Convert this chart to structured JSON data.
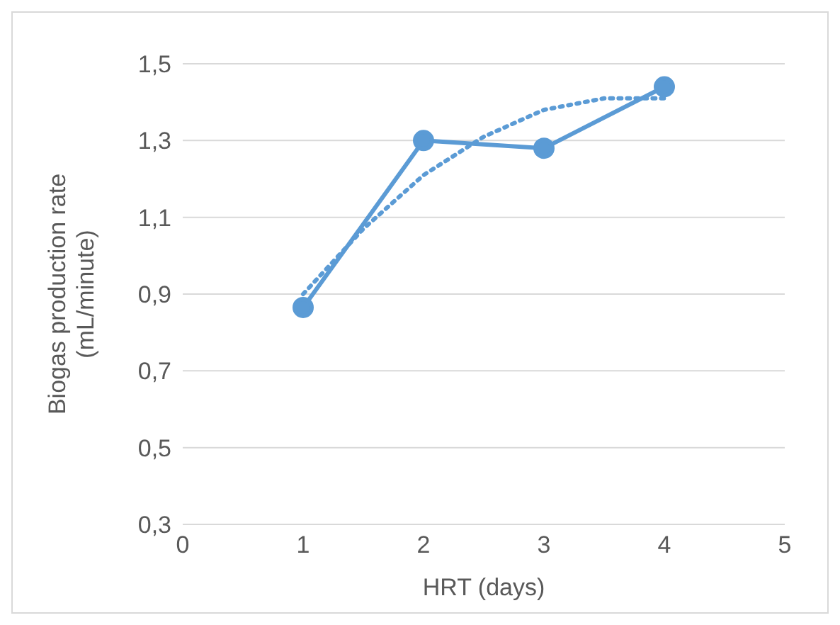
{
  "chart_data": {
    "type": "line",
    "xlabel": "HRT (days)",
    "ylabel": "Biogas production rate (mL/minute)",
    "x": [
      1,
      2,
      3,
      4
    ],
    "series": [
      {
        "color": "#5b9bd5",
        "values": [
          0.865,
          1.3,
          1.28,
          1.44
        ],
        "marker": "circle",
        "line_style": "solid"
      },
      {
        "type": "line",
        "color": "#5b9bd5",
        "x": [
          1,
          1.5,
          2,
          2.5,
          3,
          3.5,
          4
        ],
        "values": [
          0.9,
          1.07,
          1.21,
          1.31,
          1.38,
          1.41,
          1.41
        ],
        "marker": "none",
        "line_style": "dotted"
      }
    ],
    "xlim": [
      0,
      5
    ],
    "xticks": [
      0,
      1,
      2,
      3,
      4,
      5
    ],
    "ylim": [
      0.3,
      1.5
    ],
    "yticks": [
      {
        "value": 0.3,
        "label": "0,3"
      },
      {
        "value": 0.5,
        "label": "0,5"
      },
      {
        "value": 0.7,
        "label": "0,7"
      },
      {
        "value": 0.9,
        "label": "0,9"
      },
      {
        "value": 1.1,
        "label": "1,1"
      },
      {
        "value": 1.3,
        "label": "1,3"
      },
      {
        "value": 1.5,
        "label": "1,5"
      }
    ],
    "grid": "y"
  }
}
